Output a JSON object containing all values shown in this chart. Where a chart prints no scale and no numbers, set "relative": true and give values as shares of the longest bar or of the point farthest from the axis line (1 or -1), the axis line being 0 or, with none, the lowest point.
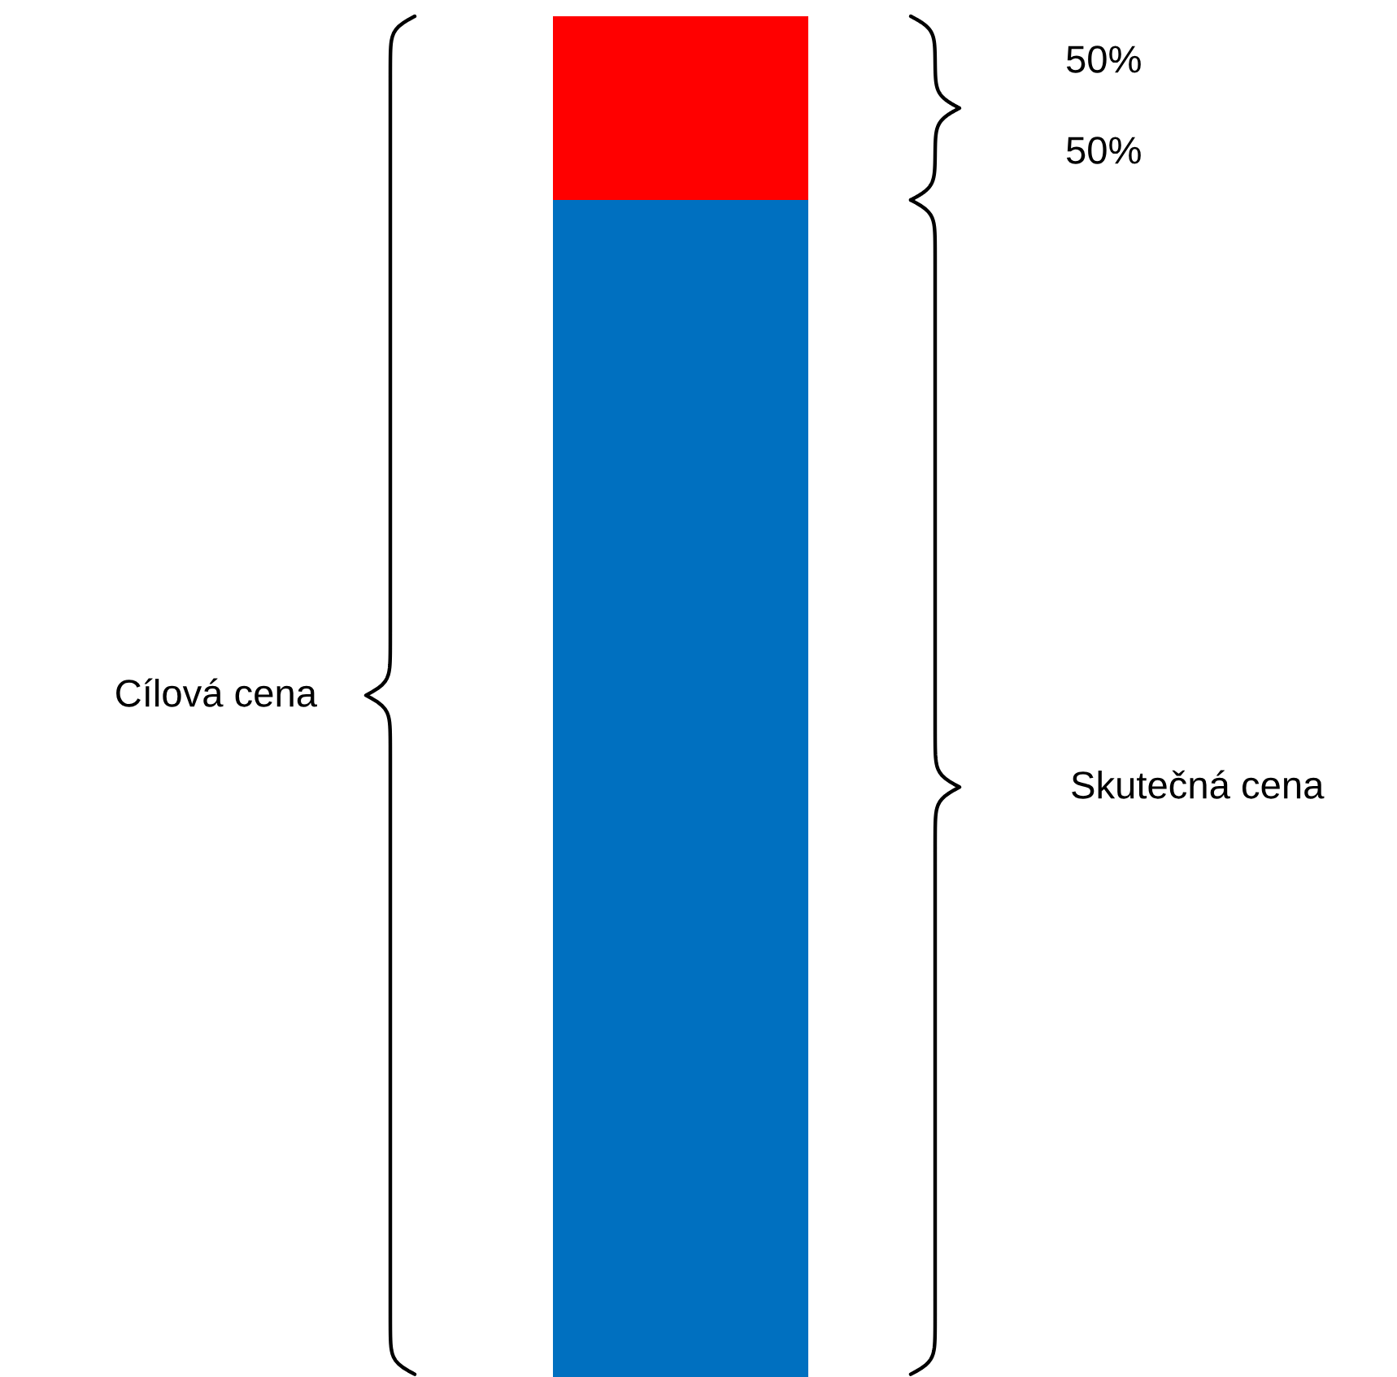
{
  "chart_data": {
    "type": "bar",
    "stacked": true,
    "relative": true,
    "categories": [
      null
    ],
    "series": [
      {
        "color": "#0070c0",
        "values": [
          0.865
        ]
      },
      {
        "color": "#ff0000",
        "values": [
          0.135
        ]
      }
    ],
    "annotations": [
      "Cílová cena",
      "Skutečná cena",
      "50%",
      "50%"
    ]
  }
}
